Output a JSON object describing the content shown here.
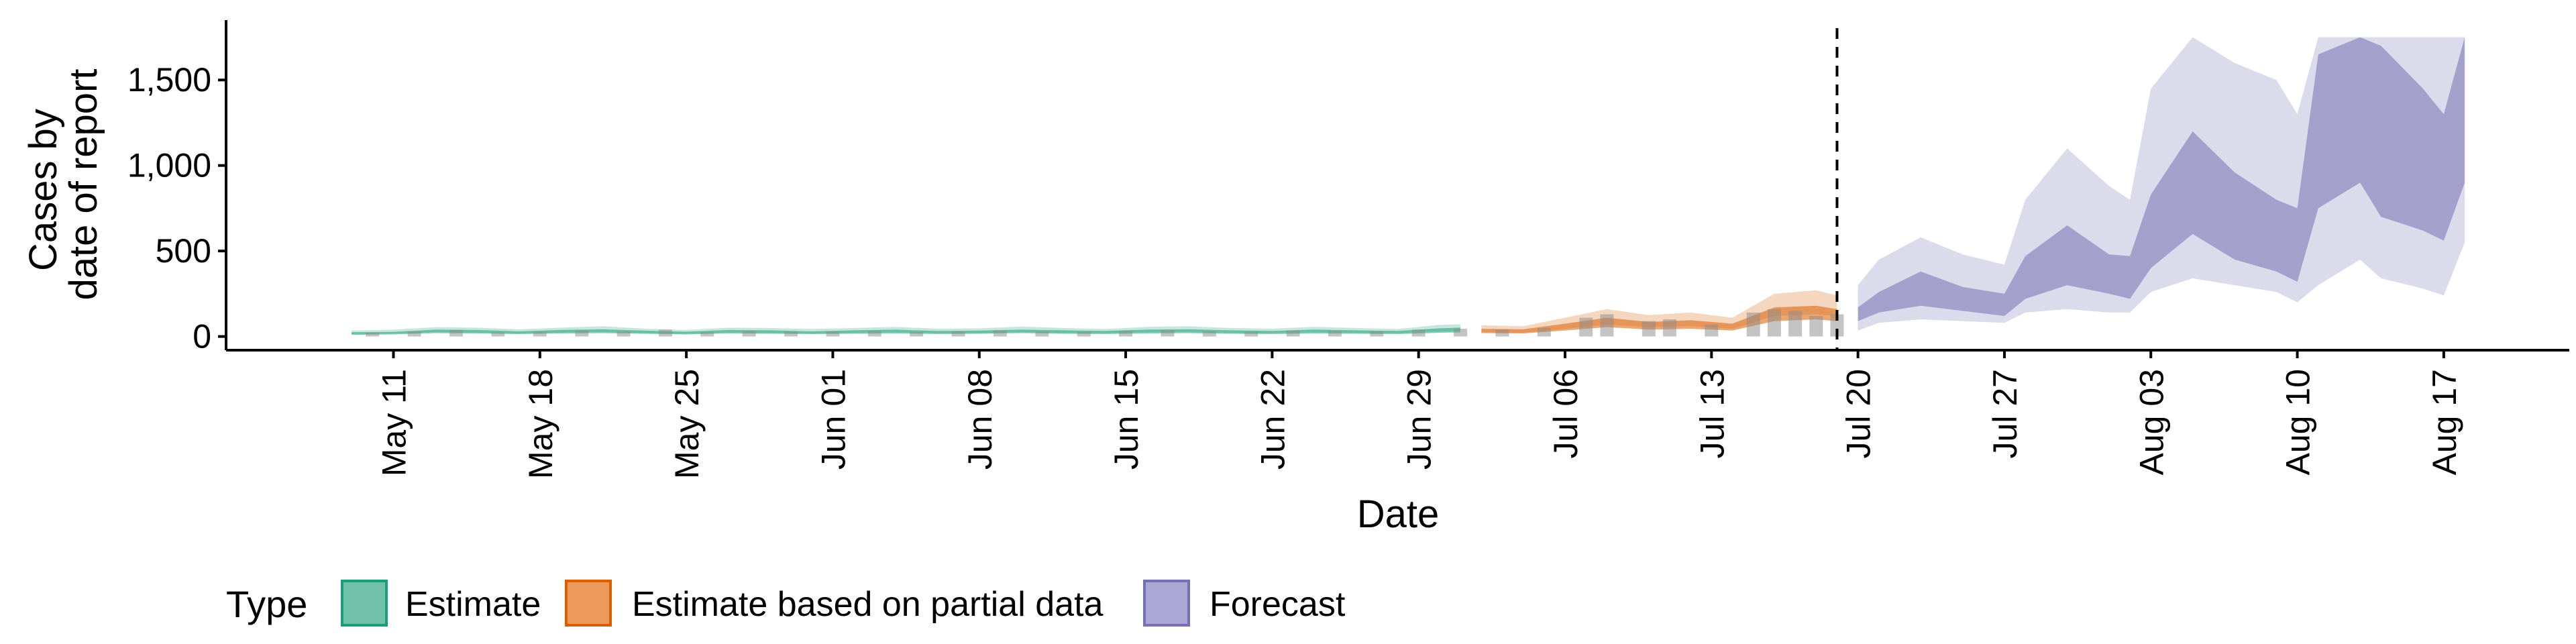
{
  "chart_data": {
    "type": "area",
    "title": "",
    "xlabel": "Date",
    "ylabel_lines": [
      "Cases by",
      "date of report"
    ],
    "x_ticks": [
      "May 11",
      "May 18",
      "May 25",
      "Jun 01",
      "Jun 08",
      "Jun 15",
      "Jun 22",
      "Jun 29",
      "Jul 06",
      "Jul 13",
      "Jul 20",
      "Jul 27",
      "Aug 03",
      "Aug 10",
      "Aug 17"
    ],
    "y_ticks": [
      "0",
      "500",
      "1,000",
      "1,500"
    ],
    "y_tick_values": [
      0,
      500,
      1000,
      1500
    ],
    "ylim": [
      -80,
      1850
    ],
    "xlim": [
      "2020-05-03",
      "2020-08-23"
    ],
    "forecast_start": "2020-07-19",
    "grid": false,
    "legend_title": "Type",
    "legend_position": "bottom",
    "legend": [
      {
        "label": "Estimate",
        "fill": "#70c1a8",
        "stroke": "#1b9e77"
      },
      {
        "label": "Estimate based on partial data",
        "fill": "#eb9a5c",
        "stroke": "#d95f02"
      },
      {
        "label": "Forecast",
        "fill": "#aaa7d4",
        "stroke": "#7570b3"
      }
    ],
    "series": [
      {
        "type": "Estimate",
        "color": "#1b9e77",
        "points": [
          [
            "2020-05-09",
            10,
            25,
            15,
            35
          ],
          [
            "2020-05-11",
            12,
            27,
            17,
            40
          ],
          [
            "2020-05-13",
            20,
            40,
            26,
            55
          ],
          [
            "2020-05-15",
            18,
            38,
            24,
            52
          ],
          [
            "2020-05-17",
            14,
            30,
            18,
            42
          ],
          [
            "2020-05-19",
            18,
            38,
            24,
            52
          ],
          [
            "2020-05-21",
            20,
            42,
            27,
            60
          ],
          [
            "2020-05-23",
            16,
            34,
            20,
            46
          ],
          [
            "2020-05-25",
            12,
            28,
            16,
            38
          ],
          [
            "2020-05-27",
            18,
            38,
            24,
            52
          ],
          [
            "2020-05-29",
            16,
            36,
            22,
            50
          ],
          [
            "2020-05-31",
            14,
            30,
            18,
            44
          ],
          [
            "2020-06-02",
            16,
            36,
            22,
            50
          ],
          [
            "2020-06-04",
            18,
            40,
            26,
            56
          ],
          [
            "2020-06-06",
            14,
            32,
            20,
            46
          ],
          [
            "2020-06-08",
            16,
            34,
            20,
            48
          ],
          [
            "2020-06-10",
            20,
            40,
            26,
            58
          ],
          [
            "2020-06-12",
            16,
            36,
            22,
            50
          ],
          [
            "2020-06-14",
            14,
            32,
            20,
            44
          ],
          [
            "2020-06-16",
            18,
            40,
            26,
            56
          ],
          [
            "2020-06-18",
            20,
            42,
            28,
            60
          ],
          [
            "2020-06-20",
            16,
            36,
            22,
            50
          ],
          [
            "2020-06-22",
            14,
            32,
            20,
            46
          ],
          [
            "2020-06-24",
            18,
            40,
            26,
            56
          ],
          [
            "2020-06-26",
            16,
            36,
            22,
            50
          ],
          [
            "2020-06-28",
            14,
            32,
            20,
            44
          ],
          [
            "2020-06-30",
            22,
            48,
            30,
            68
          ],
          [
            "2020-07-01",
            24,
            52,
            32,
            72
          ]
        ]
      },
      {
        "type": "Estimate based on partial data",
        "color": "#d95f02",
        "points": [
          [
            "2020-07-02",
            20,
            45,
            25,
            65
          ],
          [
            "2020-07-04",
            18,
            42,
            22,
            60
          ],
          [
            "2020-07-06",
            35,
            75,
            45,
            110
          ],
          [
            "2020-07-08",
            55,
            110,
            70,
            160
          ],
          [
            "2020-07-10",
            40,
            85,
            55,
            125
          ],
          [
            "2020-07-12",
            45,
            95,
            60,
            140
          ],
          [
            "2020-07-14",
            35,
            75,
            45,
            110
          ],
          [
            "2020-07-16",
            90,
            170,
            120,
            250
          ],
          [
            "2020-07-18",
            100,
            180,
            130,
            270
          ],
          [
            "2020-07-19",
            90,
            160,
            120,
            240
          ]
        ]
      },
      {
        "type": "Forecast",
        "color": "#7570b3",
        "points": [
          [
            "2020-07-20",
            90,
            170,
            35,
            300
          ],
          [
            "2020-07-21",
            140,
            260,
            80,
            450
          ],
          [
            "2020-07-23",
            180,
            380,
            100,
            580
          ],
          [
            "2020-07-25",
            150,
            290,
            90,
            480
          ],
          [
            "2020-07-27",
            120,
            250,
            80,
            420
          ],
          [
            "2020-07-28",
            220,
            470,
            140,
            800
          ],
          [
            "2020-07-30",
            300,
            650,
            160,
            1100
          ],
          [
            "2020-08-01",
            250,
            480,
            140,
            880
          ],
          [
            "2020-08-02",
            220,
            470,
            140,
            800
          ],
          [
            "2020-08-03",
            400,
            830,
            260,
            1450
          ],
          [
            "2020-08-05",
            600,
            1200,
            340,
            1750
          ],
          [
            "2020-08-07",
            450,
            960,
            300,
            1600
          ],
          [
            "2020-08-09",
            380,
            800,
            260,
            1500
          ],
          [
            "2020-08-10",
            320,
            750,
            200,
            1300
          ],
          [
            "2020-08-11",
            750,
            1650,
            300,
            1750
          ],
          [
            "2020-08-13",
            900,
            1750,
            450,
            1750
          ],
          [
            "2020-08-14",
            700,
            1700,
            340,
            1750
          ],
          [
            "2020-08-16",
            620,
            1450,
            280,
            1750
          ],
          [
            "2020-08-17",
            560,
            1300,
            240,
            1750
          ],
          [
            "2020-08-18",
            900,
            1750,
            550,
            1750
          ]
        ]
      }
    ],
    "reported_cases": [
      [
        "2020-05-10",
        22
      ],
      [
        "2020-05-12",
        30
      ],
      [
        "2020-05-14",
        38
      ],
      [
        "2020-05-16",
        25
      ],
      [
        "2020-05-18",
        28
      ],
      [
        "2020-05-20",
        35
      ],
      [
        "2020-05-22",
        30
      ],
      [
        "2020-05-24",
        40
      ],
      [
        "2020-05-26",
        26
      ],
      [
        "2020-05-28",
        32
      ],
      [
        "2020-05-30",
        28
      ],
      [
        "2020-06-01",
        30
      ],
      [
        "2020-06-03",
        34
      ],
      [
        "2020-06-05",
        28
      ],
      [
        "2020-06-07",
        30
      ],
      [
        "2020-06-09",
        36
      ],
      [
        "2020-06-11",
        30
      ],
      [
        "2020-06-13",
        28
      ],
      [
        "2020-06-15",
        34
      ],
      [
        "2020-06-17",
        38
      ],
      [
        "2020-06-19",
        30
      ],
      [
        "2020-06-21",
        28
      ],
      [
        "2020-06-23",
        36
      ],
      [
        "2020-06-25",
        32
      ],
      [
        "2020-06-27",
        30
      ],
      [
        "2020-06-29",
        40
      ],
      [
        "2020-07-01",
        45
      ],
      [
        "2020-07-03",
        40
      ],
      [
        "2020-07-05",
        50
      ],
      [
        "2020-07-07",
        110
      ],
      [
        "2020-07-08",
        130
      ],
      [
        "2020-07-10",
        90
      ],
      [
        "2020-07-11",
        100
      ],
      [
        "2020-07-13",
        70
      ],
      [
        "2020-07-15",
        140
      ],
      [
        "2020-07-16",
        160
      ],
      [
        "2020-07-17",
        150
      ],
      [
        "2020-07-18",
        120
      ],
      [
        "2020-07-19",
        130
      ]
    ]
  }
}
